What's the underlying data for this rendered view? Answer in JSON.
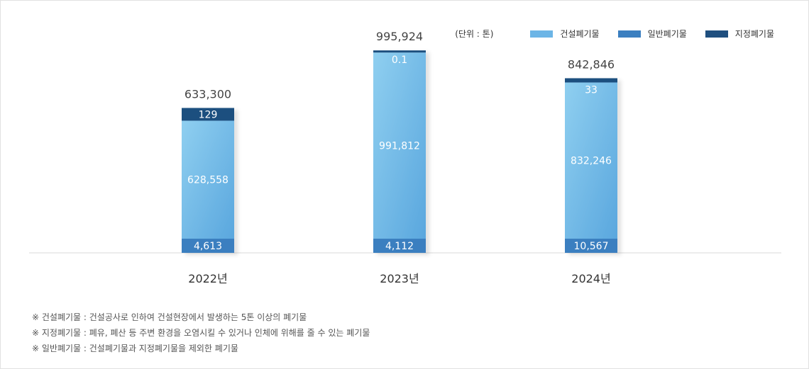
{
  "legend": {
    "unit": "(단위 : 톤)",
    "items": [
      {
        "label": "건설폐기물",
        "color": "#6cb5e6"
      },
      {
        "label": "일반폐기물",
        "color": "#3b7fc0"
      },
      {
        "label": "지정폐기물",
        "color": "#1f4f7f"
      }
    ]
  },
  "chart_data": {
    "type": "bar",
    "stacked": true,
    "categories": [
      "2022년",
      "2023년",
      "2024년"
    ],
    "totals": [
      "633,300",
      "995,924",
      "842,846"
    ],
    "series": [
      {
        "name": "일반폐기물",
        "values": [
          4613,
          4112,
          10567
        ],
        "labels": [
          "4,613",
          "4,112",
          "10,567"
        ],
        "color": "#3b7fc0"
      },
      {
        "name": "건설폐기물",
        "values": [
          628558,
          991812,
          832246
        ],
        "labels": [
          "628,558",
          "991,812",
          "832,246"
        ],
        "color": "#6cb5e6"
      },
      {
        "name": "지정폐기물",
        "values": [
          129,
          0.1,
          33
        ],
        "labels": [
          "129",
          "0.1",
          "33"
        ],
        "color": "#1f4f7f"
      }
    ]
  },
  "notes": [
    "※ 건설폐기물 : 건설공사로 인하여 건설현장에서 발생하는 5톤 이상의 폐기물",
    "※ 지정폐기물 : 폐유, 폐산 등 주변 환경을 오염시킬 수 있거나 인체에 위해를 줄 수 있는 폐기물",
    "※ 일반폐기물 : 건설폐기물과 지정폐기물을 제외한 폐기물"
  ]
}
